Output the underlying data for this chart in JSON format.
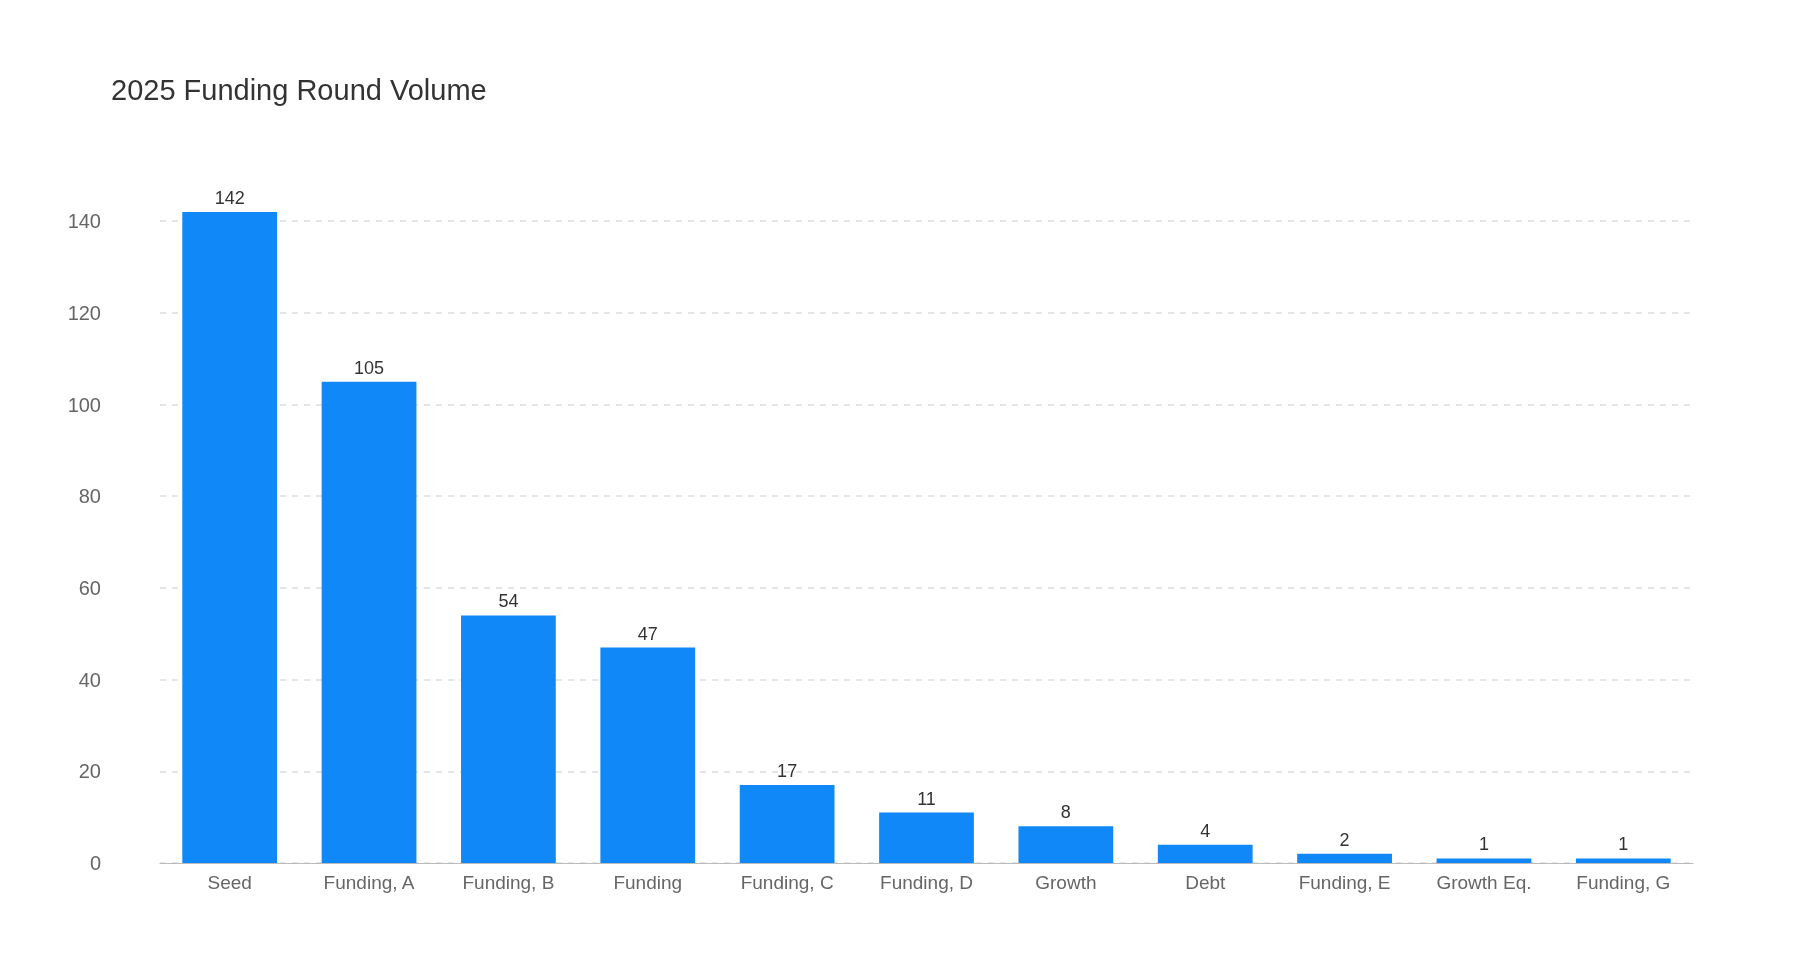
{
  "chart_data": {
    "type": "bar",
    "title": "2025 Funding Round Volume",
    "categories": [
      "Seed",
      "Funding, A",
      "Funding, B",
      "Funding",
      "Funding, C",
      "Funding, D",
      "Growth",
      "Debt",
      "Funding, E",
      "Growth Eq.",
      "Funding, G"
    ],
    "values": [
      142,
      105,
      54,
      47,
      17,
      11,
      8,
      4,
      2,
      1,
      1
    ],
    "color": "#1188f7",
    "ylim": [
      0,
      142
    ],
    "yticks": [
      0,
      20,
      40,
      60,
      80,
      100,
      120,
      140
    ],
    "grid": "y",
    "data_labels": true
  }
}
